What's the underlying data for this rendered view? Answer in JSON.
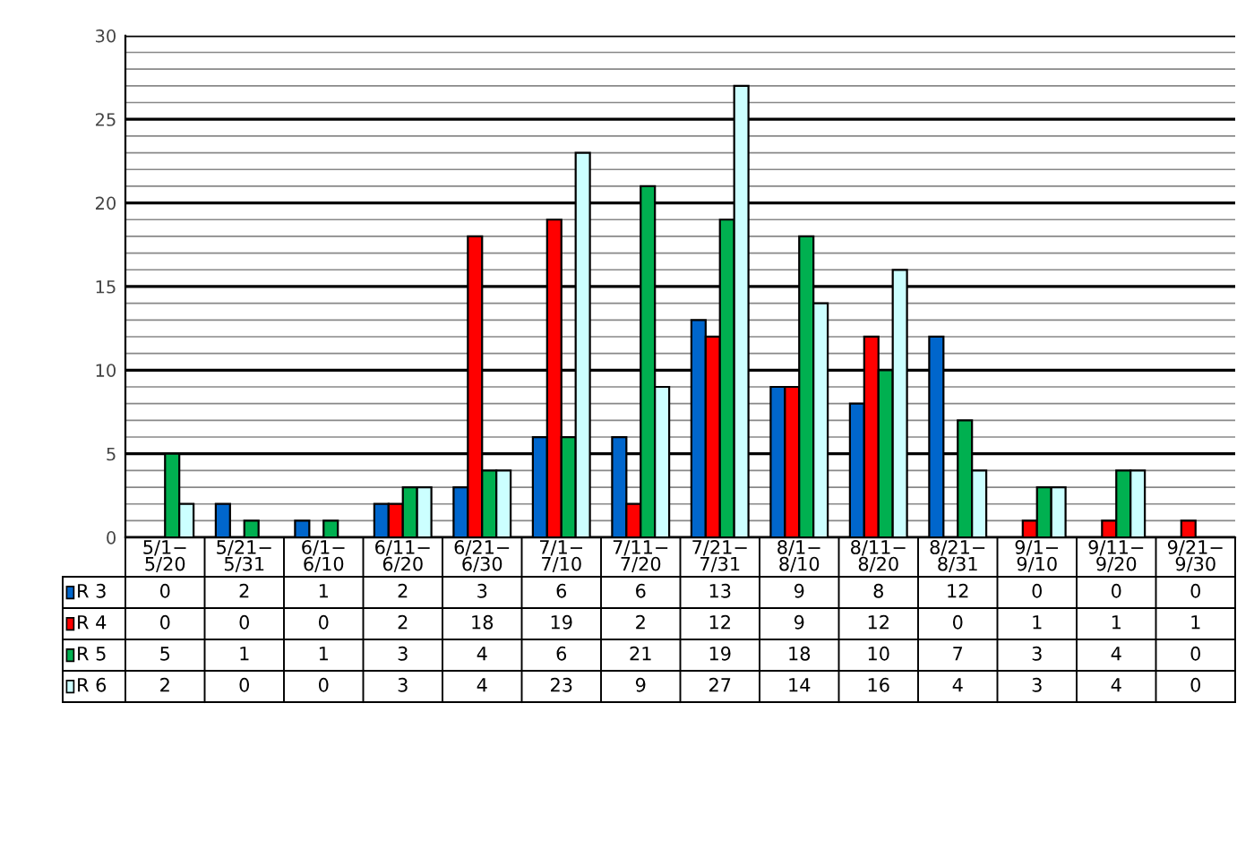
{
  "chart_data": {
    "type": "bar",
    "categories": [
      "5/1−\n5/20",
      "5/21−\n5/31",
      "6/1−\n6/10",
      "6/11−\n6/20",
      "6/21−\n6/30",
      "7/1−\n7/10",
      "7/11−\n7/20",
      "7/21−\n7/31",
      "8/1−\n8/10",
      "8/11−\n8/20",
      "8/21−\n8/31",
      "9/1−\n9/10",
      "9/11−\n9/20",
      "9/21−\n9/30"
    ],
    "series": [
      {
        "name": "R 3",
        "color": "#0066cc",
        "values": [
          0,
          2,
          1,
          2,
          3,
          6,
          6,
          13,
          9,
          8,
          12,
          0,
          0,
          0
        ]
      },
      {
        "name": "R 4",
        "color": "#ff0000",
        "values": [
          0,
          0,
          0,
          2,
          18,
          19,
          2,
          12,
          9,
          12,
          0,
          1,
          1,
          1
        ]
      },
      {
        "name": "R 5",
        "color": "#00b050",
        "values": [
          5,
          1,
          1,
          3,
          4,
          6,
          21,
          19,
          18,
          10,
          7,
          3,
          4,
          0
        ]
      },
      {
        "name": "R 6",
        "color": "#ccffff",
        "values": [
          2,
          0,
          0,
          3,
          4,
          23,
          9,
          27,
          14,
          16,
          4,
          3,
          4,
          0
        ]
      }
    ],
    "ylim": [
      0,
      30
    ],
    "yticks": [
      0,
      {
        "value": 1,
        "label": null
      },
      {
        "value": 2,
        "label": null
      },
      {
        "value": 3,
        "label": null
      },
      {
        "value": 4,
        "label": null
      },
      5,
      {
        "value": 6,
        "label": null
      },
      {
        "value": 7,
        "label": null
      },
      {
        "value": 8,
        "label": null
      },
      {
        "value": 9,
        "label": null
      },
      10,
      {
        "value": 11,
        "label": null
      },
      {
        "value": 12,
        "label": null
      },
      {
        "value": 13,
        "label": null
      },
      {
        "value": 14,
        "label": null
      },
      15,
      {
        "value": 16,
        "label": null
      },
      {
        "value": 17,
        "label": null
      },
      {
        "value": 18,
        "label": null
      },
      {
        "value": 19,
        "label": null
      },
      20,
      {
        "value": 21,
        "label": null
      },
      {
        "value": 22,
        "label": null
      },
      {
        "value": 23,
        "label": null
      },
      {
        "value": 24,
        "label": null
      },
      25,
      {
        "value": 26,
        "label": null
      },
      {
        "value": 27,
        "label": null
      },
      {
        "value": 28,
        "label": null
      },
      {
        "value": 29,
        "label": null
      },
      30
    ],
    "grid": "y",
    "data_labels": true,
    "legend": "bottom left"
  }
}
